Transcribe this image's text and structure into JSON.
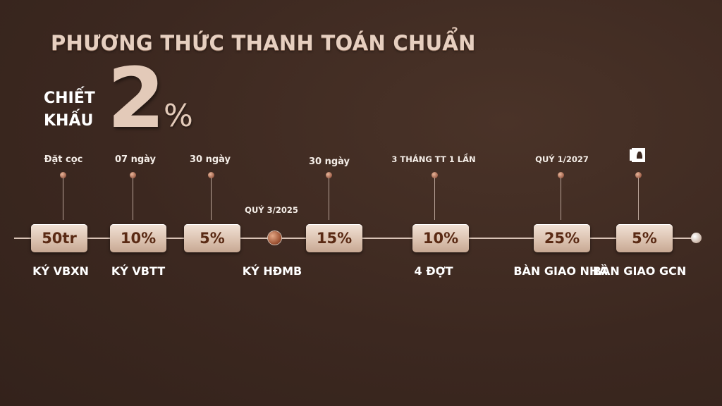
{
  "title": "PHƯƠNG THỨC THANH TOÁN CHUẨN",
  "discount": {
    "label_line1": "CHIẾT",
    "label_line2": "KHẤU",
    "value": "2",
    "unit": "%"
  },
  "timeline": {
    "steps": [
      {
        "top": "Đặt cọc",
        "value": "50tr",
        "bottom": "KÝ VBXN"
      },
      {
        "top": "07 ngày",
        "value": "10%",
        "bottom": "KÝ VBTT"
      },
      {
        "top": "30 ngày",
        "value": "5%",
        "bottom": ""
      },
      {
        "top": "30 ngày",
        "value": "15%",
        "bottom": ""
      },
      {
        "top": "3 THÁNG TT 1 LẦN",
        "value": "10%",
        "bottom": "4 ĐỢT"
      },
      {
        "top": "QUÝ 1/2027",
        "value": "25%",
        "bottom": "BÀN GIAO NHÀ"
      },
      {
        "top": "",
        "value": "5%",
        "bottom": "BÀN GIAO GCN",
        "icon": "certificate-icon"
      }
    ],
    "milestone": {
      "top": "QUÝ 3/2025",
      "bottom": "KÝ HĐMB"
    }
  },
  "colors": {
    "background": "#3c2820",
    "box": "#dcc3b1",
    "box_text": "#5a2a14"
  }
}
